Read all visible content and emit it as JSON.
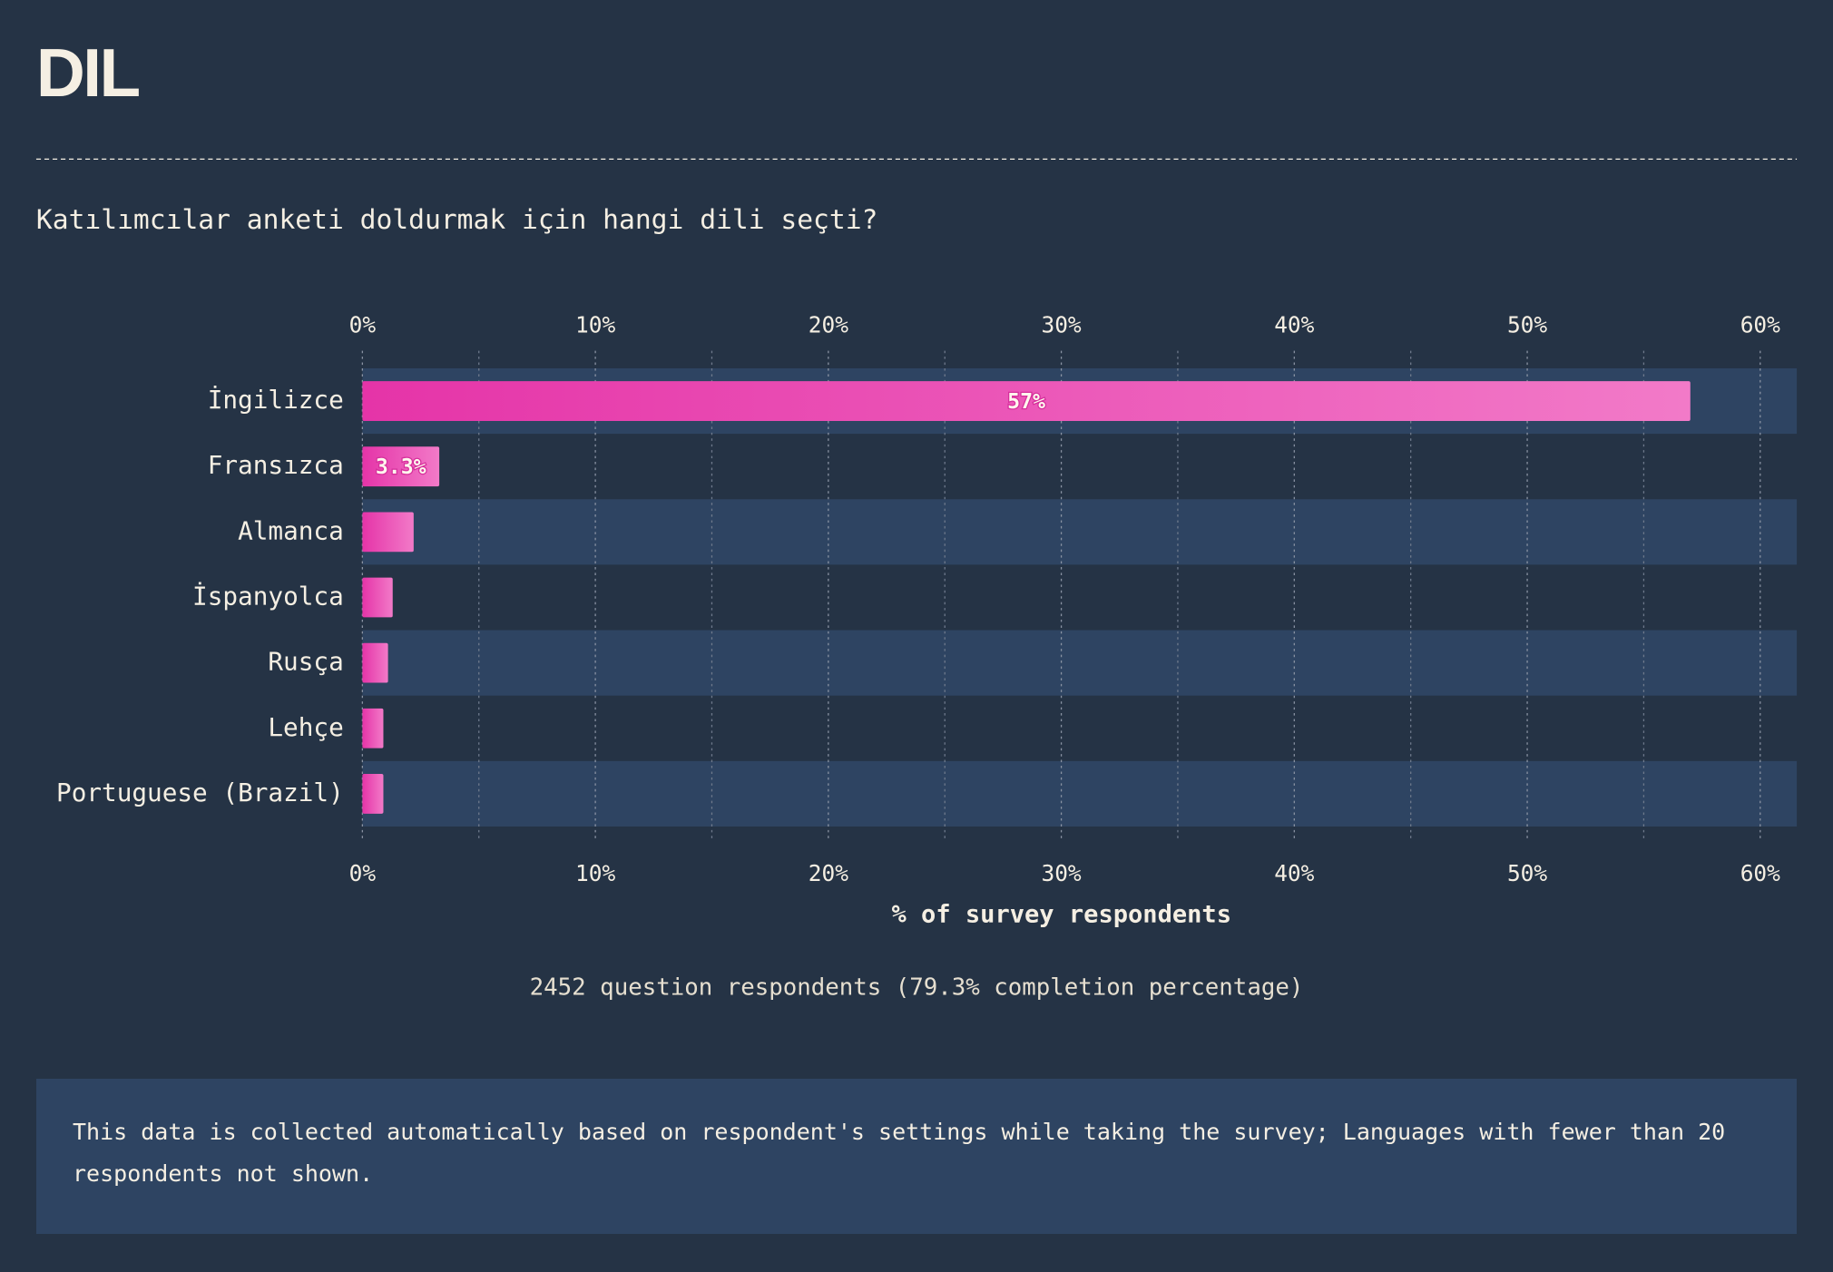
{
  "chart_data": {
    "type": "bar",
    "orientation": "horizontal",
    "title": "DIL",
    "subtitle": "Katılımcılar anketi doldurmak için hangi dili seçti?",
    "categories": [
      "İngilizce",
      "Fransızca",
      "Almanca",
      "İspanyolca",
      "Rusça",
      "Lehçe",
      "Portuguese (Brazil)"
    ],
    "values": [
      57,
      3.3,
      2.2,
      1.3,
      1.1,
      0.9,
      0.9
    ],
    "value_labels": [
      "57%",
      "3.3%",
      null,
      null,
      null,
      null,
      null
    ],
    "color": "#e534a8",
    "xlim": [
      0,
      62
    ],
    "xticks": [
      {
        "value": 0,
        "label": "0%"
      },
      {
        "value": 10,
        "label": "10%"
      },
      {
        "value": 20,
        "label": "20%"
      },
      {
        "value": 30,
        "label": "30%"
      },
      {
        "value": 40,
        "label": "40%"
      },
      {
        "value": 50,
        "label": "50%"
      },
      {
        "value": 60,
        "label": "60%"
      }
    ],
    "xlabel": "% of survey respondents",
    "grid": true,
    "note": "2452 question respondents (79.3% completion percentage)",
    "footnote": "This data is collected automatically based on respondent's settings while taking the survey; Languages with fewer than 20 respondents not shown."
  }
}
